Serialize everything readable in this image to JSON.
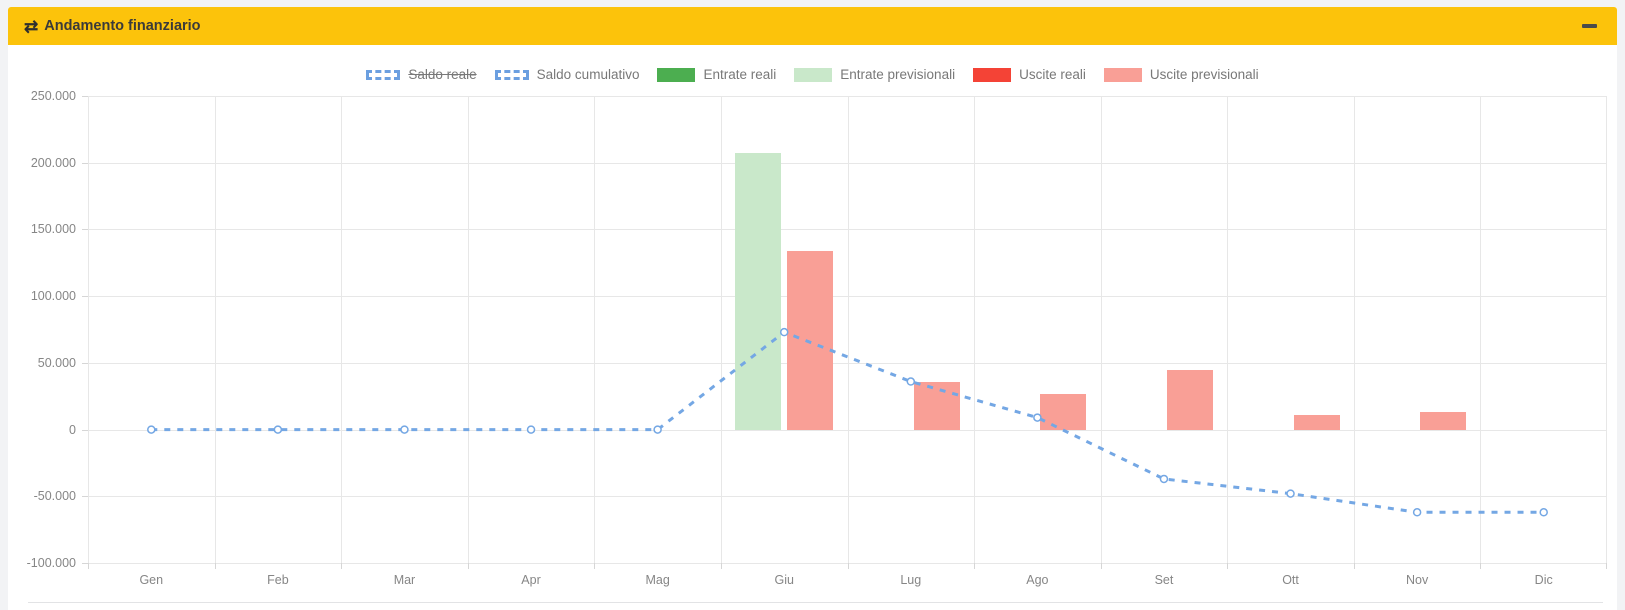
{
  "panel": {
    "title": "Andamento finanziario",
    "header_color": "#fcc30b"
  },
  "legend": [
    {
      "label": "Saldo reale",
      "swatch": "dashed-box",
      "color": "#6b9fe0",
      "disabled": true
    },
    {
      "label": "Saldo cumulativo",
      "swatch": "dashed-box",
      "color": "#6b9fe0",
      "disabled": false
    },
    {
      "label": "Entrate reali",
      "swatch": "solid",
      "color": "#4cae50",
      "disabled": false
    },
    {
      "label": "Entrate previsionali",
      "swatch": "solid",
      "color": "#c9e8ca",
      "disabled": false
    },
    {
      "label": "Uscite reali",
      "swatch": "solid",
      "color": "#f44336",
      "disabled": false
    },
    {
      "label": "Uscite previsionali",
      "swatch": "solid",
      "color": "#f99f96",
      "disabled": false
    }
  ],
  "chart_data": {
    "type": "mixed-bar-line",
    "categories": [
      "Gen",
      "Feb",
      "Mar",
      "Apr",
      "Mag",
      "Giu",
      "Lug",
      "Ago",
      "Set",
      "Ott",
      "Nov",
      "Dic"
    ],
    "series": [
      {
        "name": "Saldo cumulativo",
        "type": "line",
        "style": "dashed",
        "color": "#74a7e4",
        "values": [
          0,
          0,
          0,
          0,
          0,
          73000,
          36000,
          9000,
          -37000,
          -48000,
          -62000,
          -62000
        ]
      },
      {
        "name": "Entrate reali",
        "type": "bar",
        "group": "entrate",
        "color": "#4cae50",
        "values": [
          0,
          0,
          0,
          0,
          0,
          0,
          0,
          0,
          0,
          0,
          0,
          0
        ]
      },
      {
        "name": "Entrate previsionali",
        "type": "bar",
        "group": "entrate",
        "color": "#c9e8ca",
        "values": [
          0,
          0,
          0,
          0,
          0,
          207000,
          0,
          0,
          0,
          0,
          0,
          0
        ]
      },
      {
        "name": "Uscite reali",
        "type": "bar",
        "group": "uscite",
        "color": "#f44336",
        "values": [
          0,
          0,
          0,
          0,
          0,
          0,
          0,
          0,
          0,
          0,
          0,
          0
        ]
      },
      {
        "name": "Uscite previsionali",
        "type": "bar",
        "group": "uscite",
        "color": "#f99f96",
        "values": [
          0,
          0,
          0,
          0,
          0,
          134000,
          36000,
          27000,
          45000,
          11000,
          13000,
          0
        ]
      }
    ],
    "hidden_series": [
      "Saldo reale"
    ],
    "title": "",
    "xlabel": "",
    "ylabel": "",
    "ylim": [
      -100000,
      250000
    ],
    "ytick_step": 50000,
    "grid": true,
    "legend_position": "top"
  }
}
